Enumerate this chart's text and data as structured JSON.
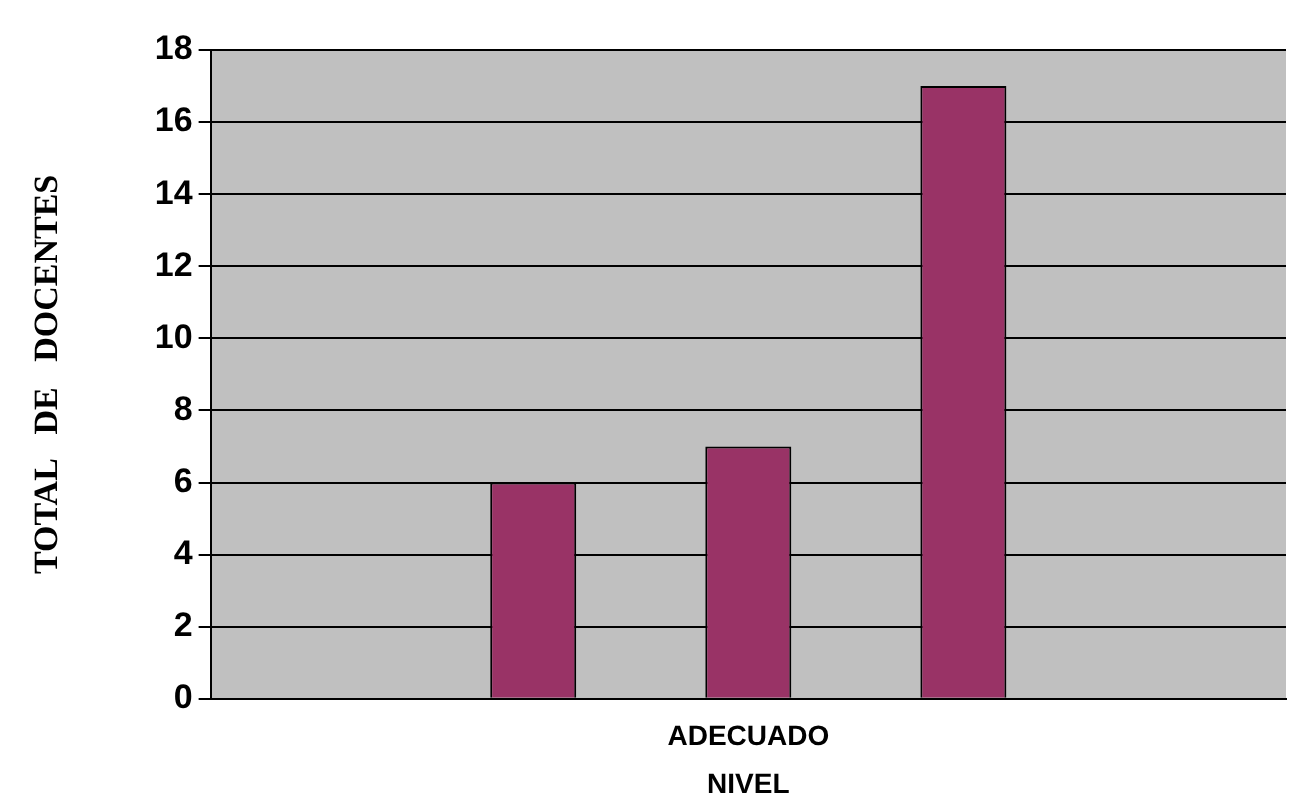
{
  "chart_data": {
    "type": "bar",
    "xlabel": "NIVEL",
    "ylabel": "TOTAL   DE   DOCENTES",
    "categories": [
      null,
      null,
      "ADECUADO",
      null,
      null
    ],
    "values": [
      null,
      6,
      7,
      17,
      null
    ],
    "color": "#993366",
    "ylim": [
      0,
      18
    ],
    "yticks": [
      0,
      2,
      4,
      6,
      8,
      10,
      12,
      14,
      16,
      18
    ],
    "grid": "y",
    "legend": false
  }
}
